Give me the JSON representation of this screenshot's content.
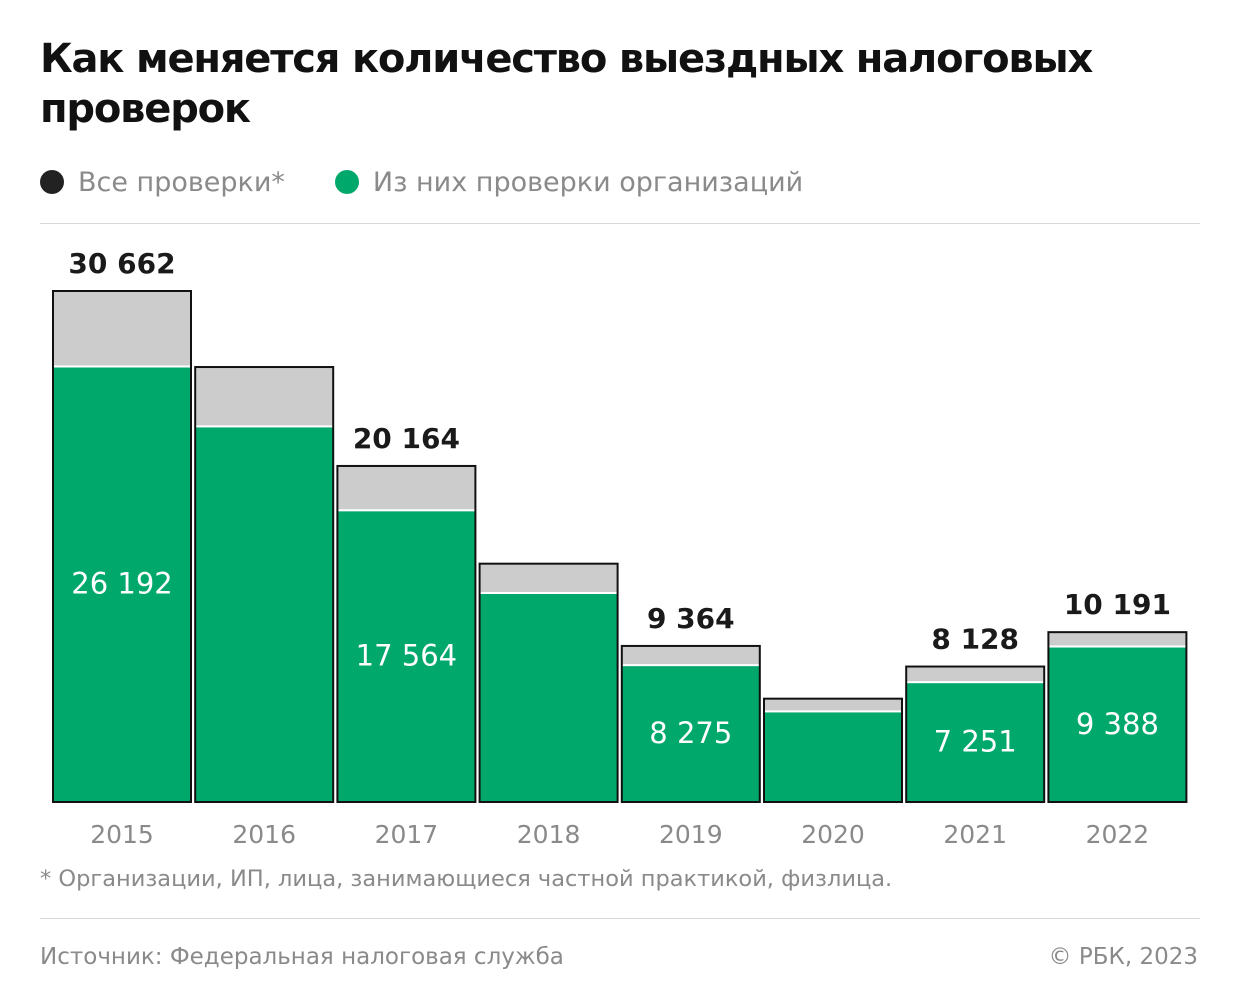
{
  "title": "Как меняется количество выездных налоговых проверок",
  "legend": [
    {
      "label": "Все проверки*",
      "color": "#222222"
    },
    {
      "label": "Из них проверки организаций",
      "color": "#00a86b"
    }
  ],
  "colors": {
    "total_bar": "#cccccc",
    "org_bar": "#00a86b",
    "outline": "#111111"
  },
  "chart_data": {
    "type": "bar",
    "categories": [
      "2015",
      "2016",
      "2017",
      "2018",
      "2019",
      "2020",
      "2021",
      "2022"
    ],
    "series": [
      {
        "name": "Все проверки*",
        "values": [
          30662,
          26100,
          20164,
          14300,
          9364,
          6200,
          8128,
          10191
        ]
      },
      {
        "name": "Из них проверки организаций",
        "values": [
          26192,
          22600,
          17564,
          12600,
          8275,
          5500,
          7251,
          9388
        ]
      }
    ],
    "total_labels": [
      "30 662",
      "",
      "20 164",
      "",
      "9 364",
      "",
      "8 128",
      "10 191"
    ],
    "org_labels": [
      "26 192",
      "",
      "17 564",
      "",
      "8 275",
      "",
      "7 251",
      "9 388"
    ],
    "ylim": [
      0,
      30662
    ],
    "grid": false,
    "legend_position": "top-left"
  },
  "footnote": "* Организации, ИП, лица, занимающиеся частной практикой, физлица.",
  "source": "Источник: Федеральная налоговая служба",
  "copyright": "© РБК, 2023"
}
